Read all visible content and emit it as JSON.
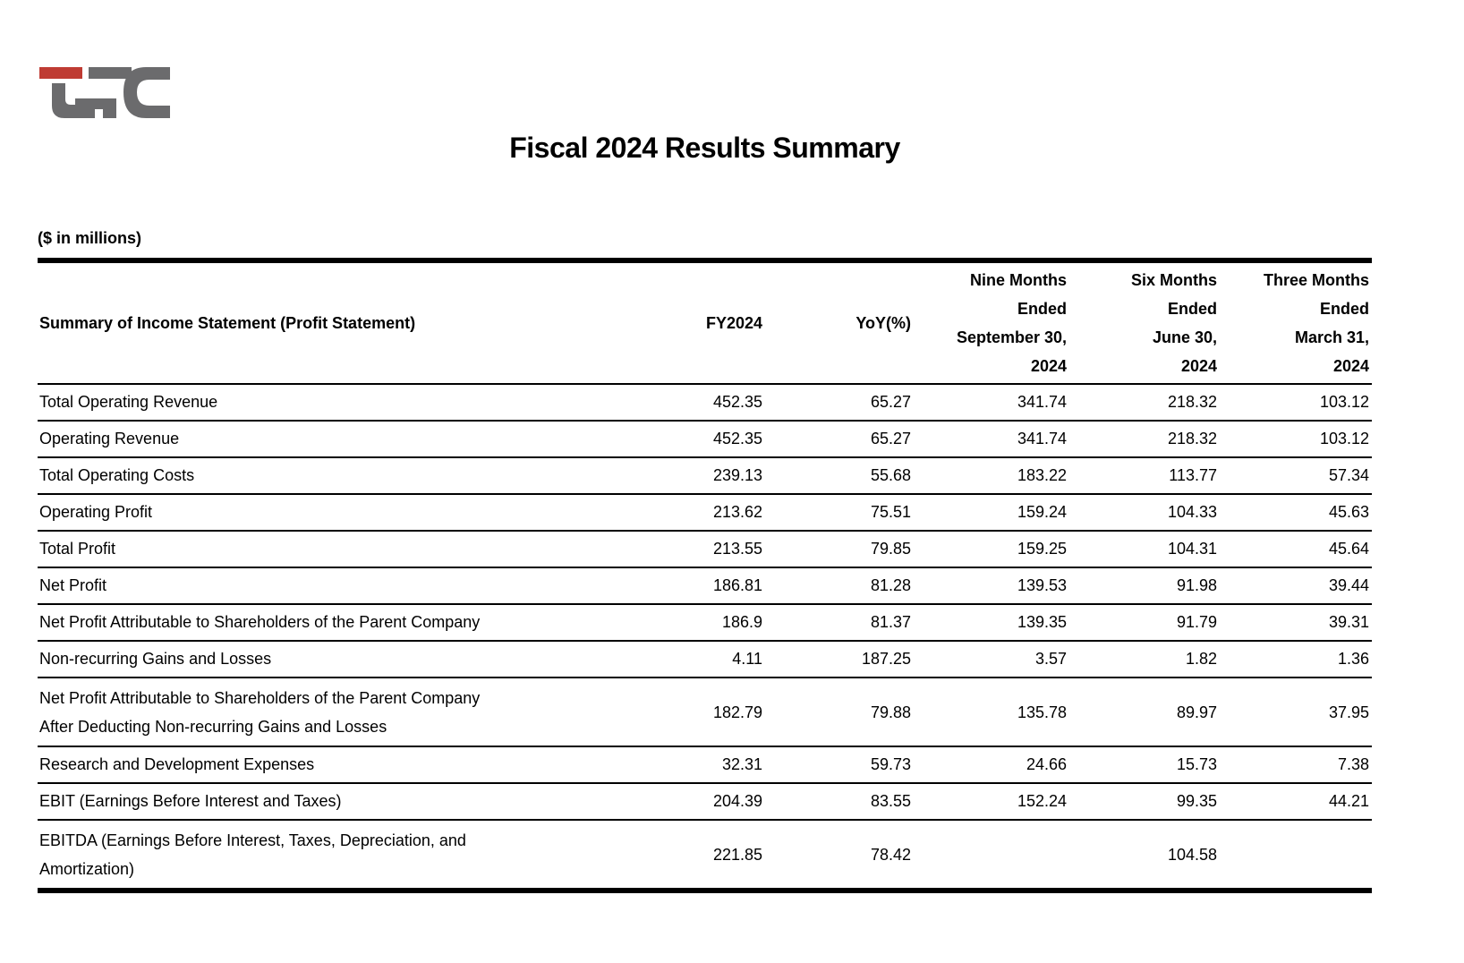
{
  "logo": {
    "letters": "LFC",
    "accent_color": "#bf3b33",
    "gray_color": "#6b6b6d"
  },
  "title": "Fiscal 2024 Results Summary",
  "table": {
    "units_note": "($ in millions)",
    "columns": [
      {
        "label": "Summary of Income Statement (Profit Statement)"
      },
      {
        "label": "FY2024"
      },
      {
        "label": "YoY(%)"
      },
      {
        "label_lines": [
          "Nine Months",
          "Ended",
          "September 30,",
          "2024"
        ]
      },
      {
        "label_lines": [
          "Six Months",
          "Ended",
          "June 30,",
          "2024"
        ]
      },
      {
        "label_lines": [
          "Three Months",
          "Ended",
          "March 31,",
          "2024"
        ]
      }
    ],
    "rows": [
      {
        "label": "Total Operating Revenue",
        "values": [
          "452.35",
          "65.27",
          "341.74",
          "218.32",
          "103.12"
        ]
      },
      {
        "label": "Operating Revenue",
        "values": [
          "452.35",
          "65.27",
          "341.74",
          "218.32",
          "103.12"
        ]
      },
      {
        "label": "Total Operating Costs",
        "values": [
          "239.13",
          "55.68",
          "183.22",
          "113.77",
          "57.34"
        ]
      },
      {
        "label": "Operating Profit",
        "values": [
          "213.62",
          "75.51",
          "159.24",
          "104.33",
          "45.63"
        ]
      },
      {
        "label": "Total Profit",
        "values": [
          "213.55",
          "79.85",
          "159.25",
          "104.31",
          "45.64"
        ]
      },
      {
        "label": "Net Profit",
        "values": [
          "186.81",
          "81.28",
          "139.53",
          "91.98",
          "39.44"
        ]
      },
      {
        "label": "Net Profit Attributable to Shareholders of the Parent Company",
        "values": [
          "186.9",
          "81.37",
          "139.35",
          "91.79",
          "39.31"
        ]
      },
      {
        "label": "Non-recurring Gains and Losses",
        "values": [
          "4.11",
          "187.25",
          "3.57",
          "1.82",
          "1.36"
        ]
      },
      {
        "label_lines": [
          "Net Profit Attributable to Shareholders of the Parent Company",
          "After Deducting Non-recurring Gains and Losses"
        ],
        "values": [
          "182.79",
          "79.88",
          "135.78",
          "89.97",
          "37.95"
        ]
      },
      {
        "label": "Research and Development Expenses",
        "values": [
          "32.31",
          "59.73",
          "24.66",
          "15.73",
          "7.38"
        ]
      },
      {
        "label": "EBIT (Earnings Before Interest and Taxes)",
        "values": [
          "204.39",
          "83.55",
          "152.24",
          "99.35",
          "44.21"
        ]
      },
      {
        "label_lines": [
          "EBITDA (Earnings Before Interest, Taxes, Depreciation, and",
          "Amortization)"
        ],
        "values": [
          "221.85",
          "78.42",
          "",
          "104.58",
          ""
        ]
      }
    ]
  }
}
